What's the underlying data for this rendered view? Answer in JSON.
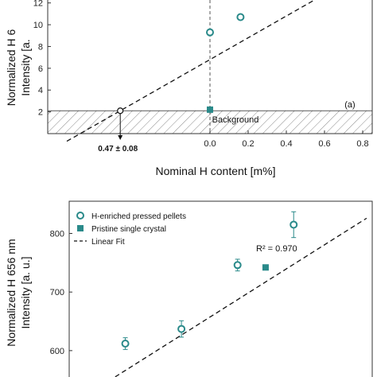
{
  "colors": {
    "teal": "#2a8a8a",
    "axis": "#333333",
    "hatch": "#8a8a8a",
    "vline": "#555555"
  },
  "chart_data": [
    {
      "type": "scatter",
      "panel_label": "(a)",
      "ylabel_line1": "Normalized H 6",
      "ylabel_line2": "Intensity [a.",
      "xlabel": "Nominal H content [m%]",
      "xlim": [
        -0.85,
        0.85
      ],
      "ylim": [
        0,
        13
      ],
      "x_ticks": [
        "0.0",
        "0.2",
        "0.4",
        "0.6",
        "0.8"
      ],
      "x_tick_values": [
        0.0,
        0.2,
        0.4,
        0.6,
        0.8
      ],
      "y_ticks": [
        "2",
        "4",
        "6",
        "8",
        "10",
        "12"
      ],
      "y_tick_values": [
        2,
        4,
        6,
        8,
        10,
        12
      ],
      "background_label": "Background",
      "background_level": 2.1,
      "intercept_label": "0.47 ± 0.08",
      "intercept_x": -0.47,
      "fit_line": {
        "slope": 10.0,
        "intercept": 6.8
      },
      "series": [
        {
          "name": "H-enriched pressed pellets",
          "marker": "circle",
          "x": [
            0.0,
            0.16
          ],
          "y": [
            9.3,
            10.7
          ],
          "yerr": [
            0.35,
            0.3
          ]
        },
        {
          "name": "Pristine single crystal",
          "marker": "square",
          "x": [
            0.0
          ],
          "y": [
            2.2
          ]
        }
      ]
    },
    {
      "type": "scatter",
      "ylabel_line1": "Normalized H 656 nm",
      "ylabel_line2": "Intensity [a. u.]",
      "ylim": [
        555,
        855
      ],
      "y_ticks": [
        "600",
        "700",
        "800"
      ],
      "y_tick_values": [
        600,
        700,
        800
      ],
      "r2_label": "R² = 0.970",
      "legend": [
        "H-enriched pressed pellets",
        "Pristine single crystal",
        "Linear Fit"
      ],
      "legend_position": "top-left",
      "series": [
        {
          "name": "H-enriched pressed pellets",
          "marker": "circle",
          "x": [
            1,
            2,
            3,
            4
          ],
          "y": [
            612,
            637,
            746,
            815
          ],
          "yerr": [
            10,
            14,
            10,
            22
          ]
        },
        {
          "name": "Pristine single crystal",
          "marker": "square",
          "x": [
            3.5
          ],
          "y": [
            742
          ]
        }
      ],
      "fit_line": {
        "from": [
          0.7,
          548
        ],
        "to": [
          5.3,
          826
        ]
      },
      "xlim": [
        0,
        5.4
      ]
    }
  ]
}
